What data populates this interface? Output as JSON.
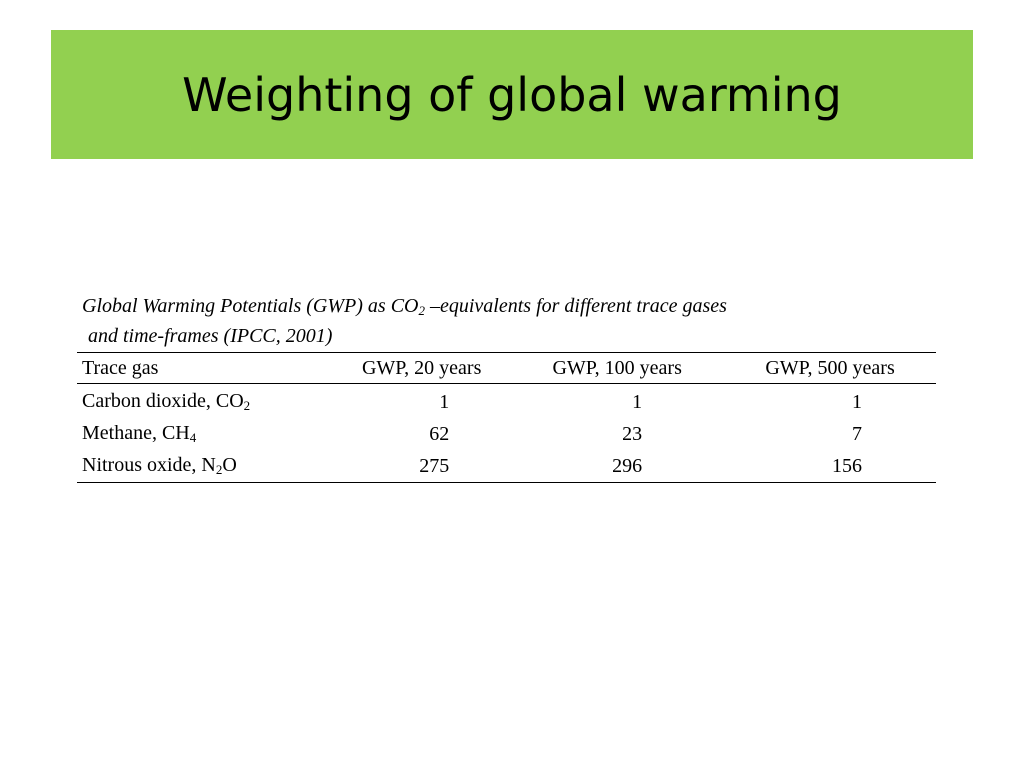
{
  "slide": {
    "title": "Weighting of global warming"
  },
  "caption": {
    "line1_pre": "Global Warming Potentials (GWP) as CO",
    "line1_sub": "2",
    "line1_post": " –equivalents for different trace gases",
    "line2": "and time-frames (IPCC, 2001)"
  },
  "table": {
    "headers": [
      "Trace gas",
      "GWP, 20 years",
      "GWP, 100 years",
      "GWP, 500 years"
    ],
    "rows": [
      {
        "gas_name": "Carbon dioxide, CO",
        "gas_sub": "2",
        "gas_suffix": "",
        "gwp20": "1",
        "gwp100": "1",
        "gwp500": "1"
      },
      {
        "gas_name": "Methane, CH",
        "gas_sub": "4",
        "gas_suffix": "",
        "gwp20": "62",
        "gwp100": "23",
        "gwp500": "7"
      },
      {
        "gas_name": "Nitrous oxide, N",
        "gas_sub": "2",
        "gas_suffix": "O",
        "gwp20": "275",
        "gwp100": "296",
        "gwp500": "156"
      }
    ]
  },
  "colors": {
    "title_band": "#92d050",
    "text": "#000000",
    "background": "#ffffff"
  }
}
